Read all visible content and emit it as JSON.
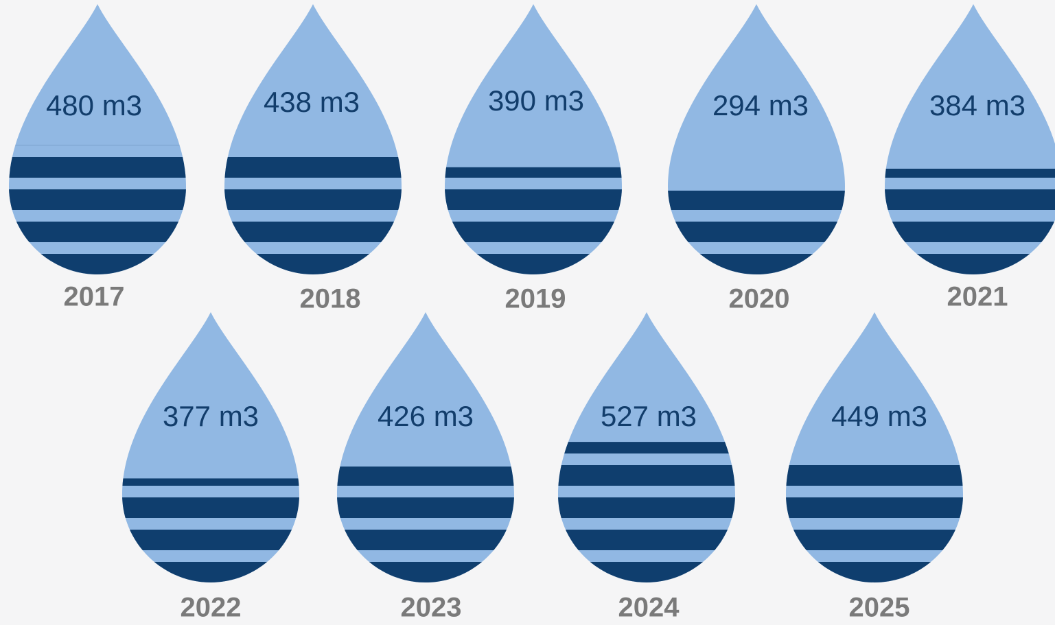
{
  "chart_data": {
    "type": "pictograph",
    "unit": "m3",
    "colors": {
      "drop_light": "#91b8e3",
      "drop_dark": "#0f3e6e",
      "value_text": "#123d6b",
      "year_text": "#7a7a7a",
      "background": "#f5f5f6"
    },
    "items": [
      {
        "year": "2017",
        "value": 480,
        "label": "480 m3"
      },
      {
        "year": "2018",
        "value": 438,
        "label": "438 m3"
      },
      {
        "year": "2019",
        "value": 390,
        "label": "390 m3"
      },
      {
        "year": "2020",
        "value": 294,
        "label": "294 m3"
      },
      {
        "year": "2021",
        "value": 384,
        "label": "384 m3"
      },
      {
        "year": "2022",
        "value": 377,
        "label": "377 m3"
      },
      {
        "year": "2023",
        "value": 426,
        "label": "426 m3"
      },
      {
        "year": "2024",
        "value": 527,
        "label": "527 m3"
      },
      {
        "year": "2025",
        "value": 449,
        "label": "449 m3"
      }
    ]
  }
}
